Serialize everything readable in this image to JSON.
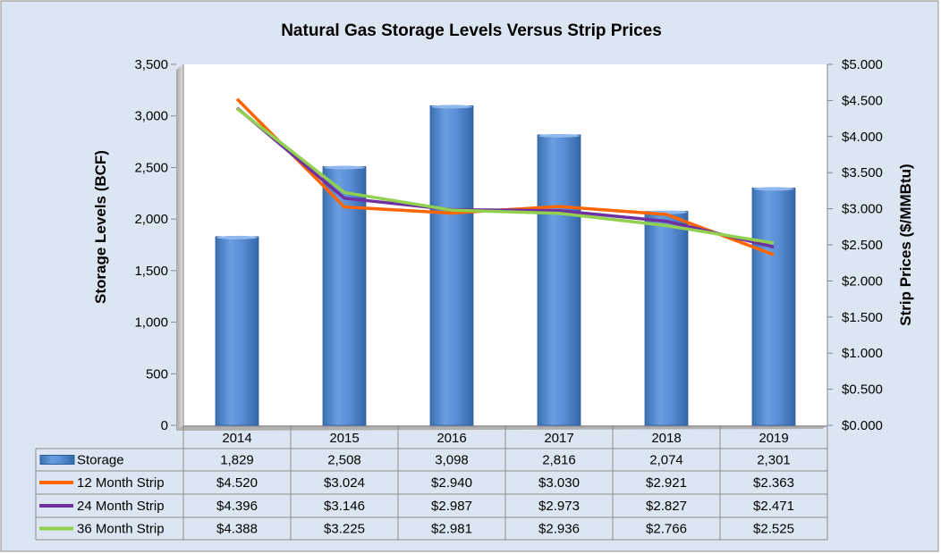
{
  "chart_data": {
    "type": "bar+line",
    "title": "Natural Gas Storage Levels Versus Strip Prices",
    "categories": [
      "2014",
      "2015",
      "2016",
      "2017",
      "2018",
      "2019"
    ],
    "ylabel": "Storage Levels (BCF)",
    "y2label": "Strip Prices ($/MMBtu)",
    "ylim": [
      0,
      3500
    ],
    "y2lim": [
      0,
      5
    ],
    "yticks": [
      "0",
      "500",
      "1,000",
      "1,500",
      "2,000",
      "2,500",
      "3,000",
      "3,500"
    ],
    "y2ticks": [
      "$0.000",
      "$0.500",
      "$1.000",
      "$1.500",
      "$2.000",
      "$2.500",
      "$3.000",
      "$3.500",
      "$4.000",
      "$4.500",
      "$5.000"
    ],
    "bars": {
      "name": "Storage",
      "values": [
        1829,
        2508,
        3098,
        2816,
        2074,
        2301
      ],
      "labels": [
        "1,829",
        "2,508",
        "3,098",
        "2,816",
        "2,074",
        "2,301"
      ],
      "color": "#4f81bd"
    },
    "series": [
      {
        "name": "12 Month Strip",
        "values": [
          4.52,
          3.024,
          2.94,
          3.03,
          2.921,
          2.363
        ],
        "labels": [
          "$4.520",
          "$3.024",
          "$2.940",
          "$3.030",
          "$2.921",
          "$2.363"
        ],
        "color": "#ff6600"
      },
      {
        "name": "24 Month Strip",
        "values": [
          4.396,
          3.146,
          2.987,
          2.973,
          2.827,
          2.471
        ],
        "labels": [
          "$4.396",
          "$3.146",
          "$2.987",
          "$2.973",
          "$2.827",
          "$2.471"
        ],
        "color": "#7030a0"
      },
      {
        "name": "36 Month Strip",
        "values": [
          4.388,
          3.225,
          2.981,
          2.936,
          2.766,
          2.525
        ],
        "labels": [
          "$4.388",
          "$3.225",
          "$2.981",
          "$2.936",
          "$2.766",
          "$2.525"
        ],
        "color": "#92d050"
      }
    ],
    "grid": false,
    "legend": "data-table"
  }
}
